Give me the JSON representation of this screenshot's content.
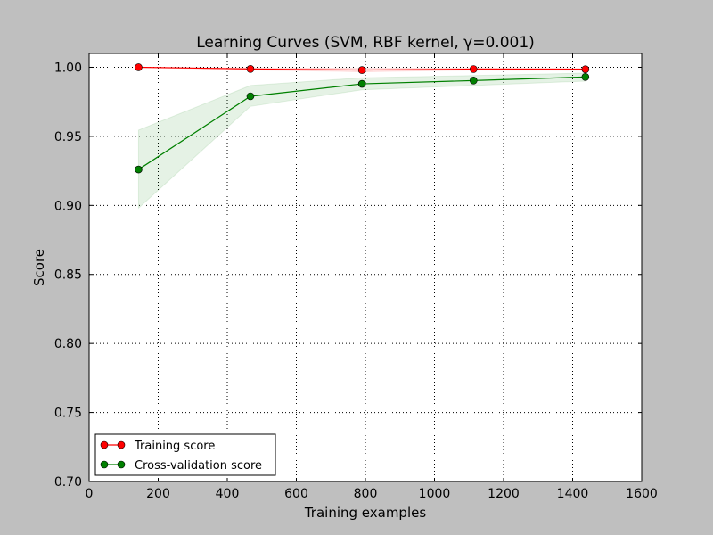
{
  "chart_data": {
    "type": "line",
    "title": "Learning Curves (SVM, RBF kernel, γ=0.001)",
    "xlabel": "Training examples",
    "ylabel": "Score",
    "xlim": [
      0,
      1600
    ],
    "ylim": [
      0.7,
      1.01
    ],
    "xticks": [
      0,
      200,
      400,
      600,
      800,
      1000,
      1200,
      1400,
      1600
    ],
    "yticks": [
      0.7,
      0.75,
      0.8,
      0.85,
      0.9,
      0.95,
      1.0
    ],
    "xtick_labels": [
      "0",
      "200",
      "400",
      "600",
      "800",
      "1000",
      "1200",
      "1400",
      "1600"
    ],
    "ytick_labels": [
      "0.70",
      "0.75",
      "0.80",
      "0.85",
      "0.90",
      "0.95",
      "1.00"
    ],
    "grid": true,
    "legend_placement": "lower-left",
    "x": [
      143,
      467,
      790,
      1113,
      1437
    ],
    "series": [
      {
        "name": "Training score",
        "color": "#ff0000",
        "values": [
          1.0,
          0.9988,
          0.998,
          0.9987,
          0.9986
        ],
        "band_upper": [
          1.0,
          0.9995,
          0.9992,
          0.9994,
          0.9993
        ],
        "band_lower": [
          1.0,
          0.9981,
          0.9968,
          0.998,
          0.9979
        ]
      },
      {
        "name": "Cross-validation score",
        "color": "#008000",
        "values": [
          0.926,
          0.979,
          0.988,
          0.9904,
          0.993
        ],
        "band_upper": [
          0.9545,
          0.9868,
          0.9924,
          0.994,
          0.9958
        ],
        "band_lower": [
          0.898,
          0.9717,
          0.9837,
          0.9868,
          0.99
        ]
      }
    ]
  }
}
